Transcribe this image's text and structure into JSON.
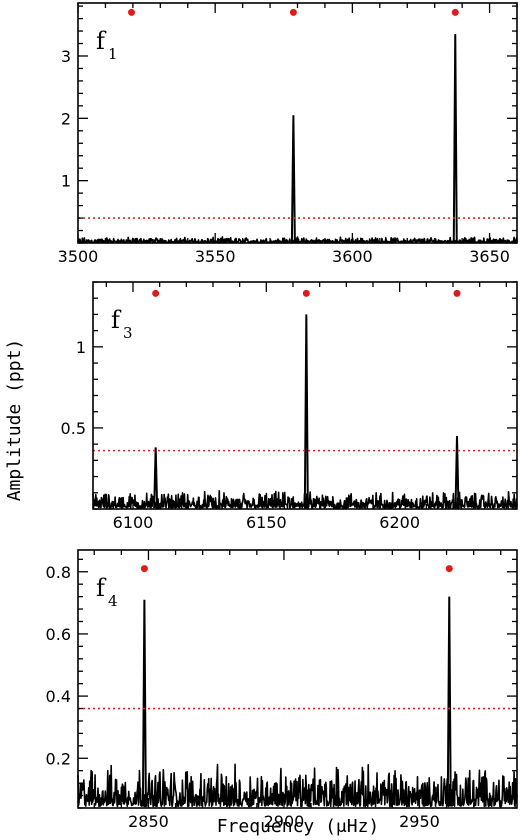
{
  "colors": {
    "spectrum": "#000000",
    "threshold": "#dd2222",
    "marker": "#e01b1b",
    "frame": "#000000"
  },
  "ylabel": "Amplitude (ppt)",
  "xlabel": "Frequency (μHz)",
  "chart_data": [
    {
      "type": "line",
      "panel_label": "f",
      "panel_sub": "1",
      "xlim": [
        3500,
        3660
      ],
      "ylim": [
        0,
        3.85
      ],
      "xticks": [
        3500,
        3550,
        3600,
        3650
      ],
      "xtick_labels": [
        "3500",
        "3550",
        "3600",
        "3650"
      ],
      "yticks": [
        1,
        2,
        3
      ],
      "ytick_labels": [
        "1",
        "2",
        "3"
      ],
      "threshold": 0.4,
      "markers": [
        3519.5,
        3578.5,
        3637.5
      ],
      "marker_y": 3.7,
      "noise_level": 0.06,
      "peaks": [
        {
          "x": 3578.5,
          "amp": 2.05
        },
        {
          "x": 3637.5,
          "amp": 3.35
        }
      ]
    },
    {
      "type": "line",
      "panel_label": "f",
      "panel_sub": "3",
      "xlim": [
        6085,
        6244
      ],
      "ylim": [
        0,
        1.4
      ],
      "xticks": [
        6100,
        6150,
        6200
      ],
      "xtick_labels": [
        "6100",
        "6150",
        "6200"
      ],
      "yticks": [
        0.5,
        1
      ],
      "ytick_labels": [
        "0.5",
        "1"
      ],
      "threshold": 0.36,
      "markers": [
        6108.5,
        6165,
        6221.5
      ],
      "marker_y": 1.33,
      "noise_level": 0.07,
      "peaks": [
        {
          "x": 6108.5,
          "amp": 0.38
        },
        {
          "x": 6165,
          "amp": 1.2
        },
        {
          "x": 6221.5,
          "amp": 0.45
        }
      ]
    },
    {
      "type": "line",
      "panel_label": "f",
      "panel_sub": "4",
      "xlim": [
        2824,
        2986
      ],
      "ylim": [
        0.04,
        0.87
      ],
      "xticks": [
        2850,
        2900,
        2950
      ],
      "xtick_labels": [
        "2850",
        "2900",
        "2950"
      ],
      "yticks": [
        0.2,
        0.4,
        0.6,
        0.8
      ],
      "ytick_labels": [
        "0.2",
        "0.4",
        "0.6",
        "0.8"
      ],
      "threshold": 0.36,
      "markers": [
        2848.5,
        2961
      ],
      "marker_y": 0.81,
      "noise_level": 0.09,
      "peaks": [
        {
          "x": 2848.5,
          "amp": 0.71
        },
        {
          "x": 2961,
          "amp": 0.72
        }
      ]
    }
  ]
}
